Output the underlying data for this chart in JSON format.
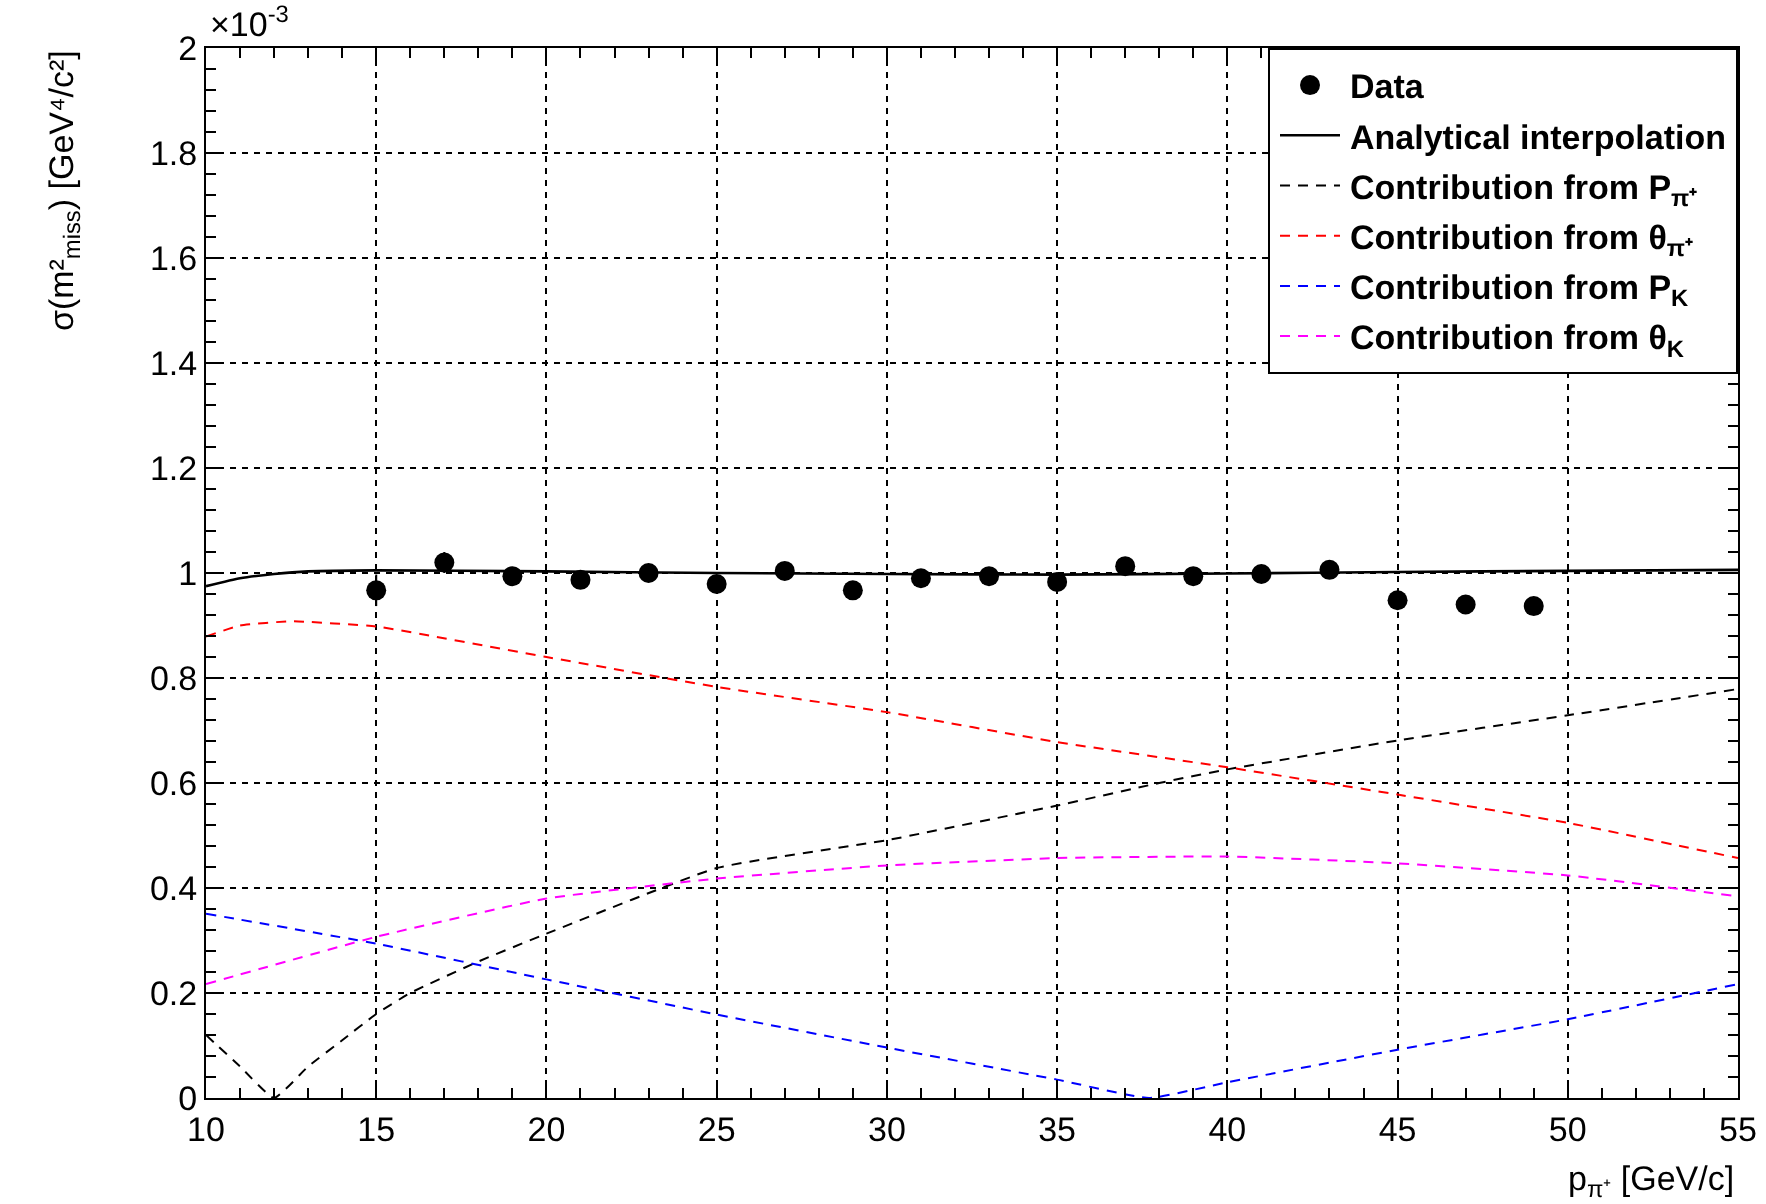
{
  "chart_data": {
    "type": "line",
    "xlabel": "p$_{π⁺}$ [GeV/c]",
    "ylabel": "σ(m²$_{miss}$) [GeV⁴/c²]",
    "annotations": [
      "×10$^{-3}$"
    ],
    "xlim": [
      10,
      55
    ],
    "xticks": [
      10,
      15,
      20,
      25,
      30,
      35,
      40,
      45,
      50,
      55
    ],
    "ylim": [
      0,
      2
    ],
    "yticks": [
      0,
      0.2,
      0.4,
      0.6,
      0.8,
      1,
      1.2,
      1.4,
      1.6,
      1.8,
      2
    ],
    "grid": true,
    "legend": "top right",
    "series": [
      {
        "name": "Data",
        "type": "scatter",
        "marker": "circle",
        "color": "#000000",
        "x": [
          15,
          17,
          19,
          21,
          23,
          25,
          27,
          29,
          31,
          33,
          35,
          37,
          39,
          41,
          43,
          45,
          47,
          49
        ],
        "values": [
          0.967,
          1.02,
          0.994,
          0.987,
          1.0,
          0.979,
          1.004,
          0.967,
          0.99,
          0.994,
          0.983,
          1.013,
          0.994,
          0.998,
          1.006,
          0.948,
          0.94,
          0.937
        ],
        "errors": [
          0.03,
          0.02,
          null,
          null,
          null,
          null,
          null,
          null,
          null,
          null,
          null,
          null,
          null,
          null,
          null,
          null,
          null,
          null
        ]
      },
      {
        "name": "Analytical interpolation",
        "line_style": "solid",
        "color": "#000000",
        "x": [
          10,
          11,
          12,
          13,
          15,
          20,
          25,
          30,
          35,
          40,
          45,
          50,
          55
        ],
        "values": [
          0.975,
          0.99,
          0.998,
          1.003,
          1.005,
          1.003,
          1.0,
          0.998,
          0.997,
          0.999,
          1.002,
          1.004,
          1.006
        ]
      },
      {
        "name": "Contribution from P$_{π⁺}$",
        "line_style": "dashed",
        "color": "#000000",
        "x": [
          10,
          11,
          12,
          13,
          14,
          15,
          16,
          18,
          20,
          25,
          30,
          35,
          38,
          40,
          45,
          50,
          55
        ],
        "values": [
          0.12,
          0.06,
          0,
          0.06,
          0.11,
          0.16,
          0.2,
          0.26,
          0.313,
          0.438,
          0.491,
          0.557,
          0.6,
          0.626,
          0.681,
          0.729,
          0.779
        ]
      },
      {
        "name": "Contribution from θ$_{π⁺}$",
        "line_style": "dashed",
        "color": "#ff0000",
        "x": [
          10,
          11,
          12.5,
          15,
          20,
          25,
          30,
          35,
          40,
          45,
          50,
          55
        ],
        "values": [
          0.879,
          0.9,
          0.908,
          0.898,
          0.84,
          0.783,
          0.735,
          0.678,
          0.63,
          0.578,
          0.524,
          0.457
        ]
      },
      {
        "name": "Contribution from P$_{K}$",
        "line_style": "dashed",
        "color": "#0000ff",
        "x": [
          10,
          15,
          20,
          25,
          30,
          35,
          37.7,
          40,
          45,
          50,
          55
        ],
        "values": [
          0.351,
          0.294,
          0.226,
          0.159,
          0.096,
          0.035,
          0,
          0.03,
          0.092,
          0.15,
          0.217
        ]
      },
      {
        "name": "Contribution from θ$_{K}$",
        "line_style": "dashed",
        "color": "#ff00ff",
        "x": [
          10,
          15,
          20,
          25,
          30,
          35,
          40,
          45,
          50,
          55
        ],
        "values": [
          0.217,
          0.307,
          0.38,
          0.418,
          0.443,
          0.457,
          0.46,
          0.447,
          0.424,
          0.384
        ]
      }
    ]
  }
}
